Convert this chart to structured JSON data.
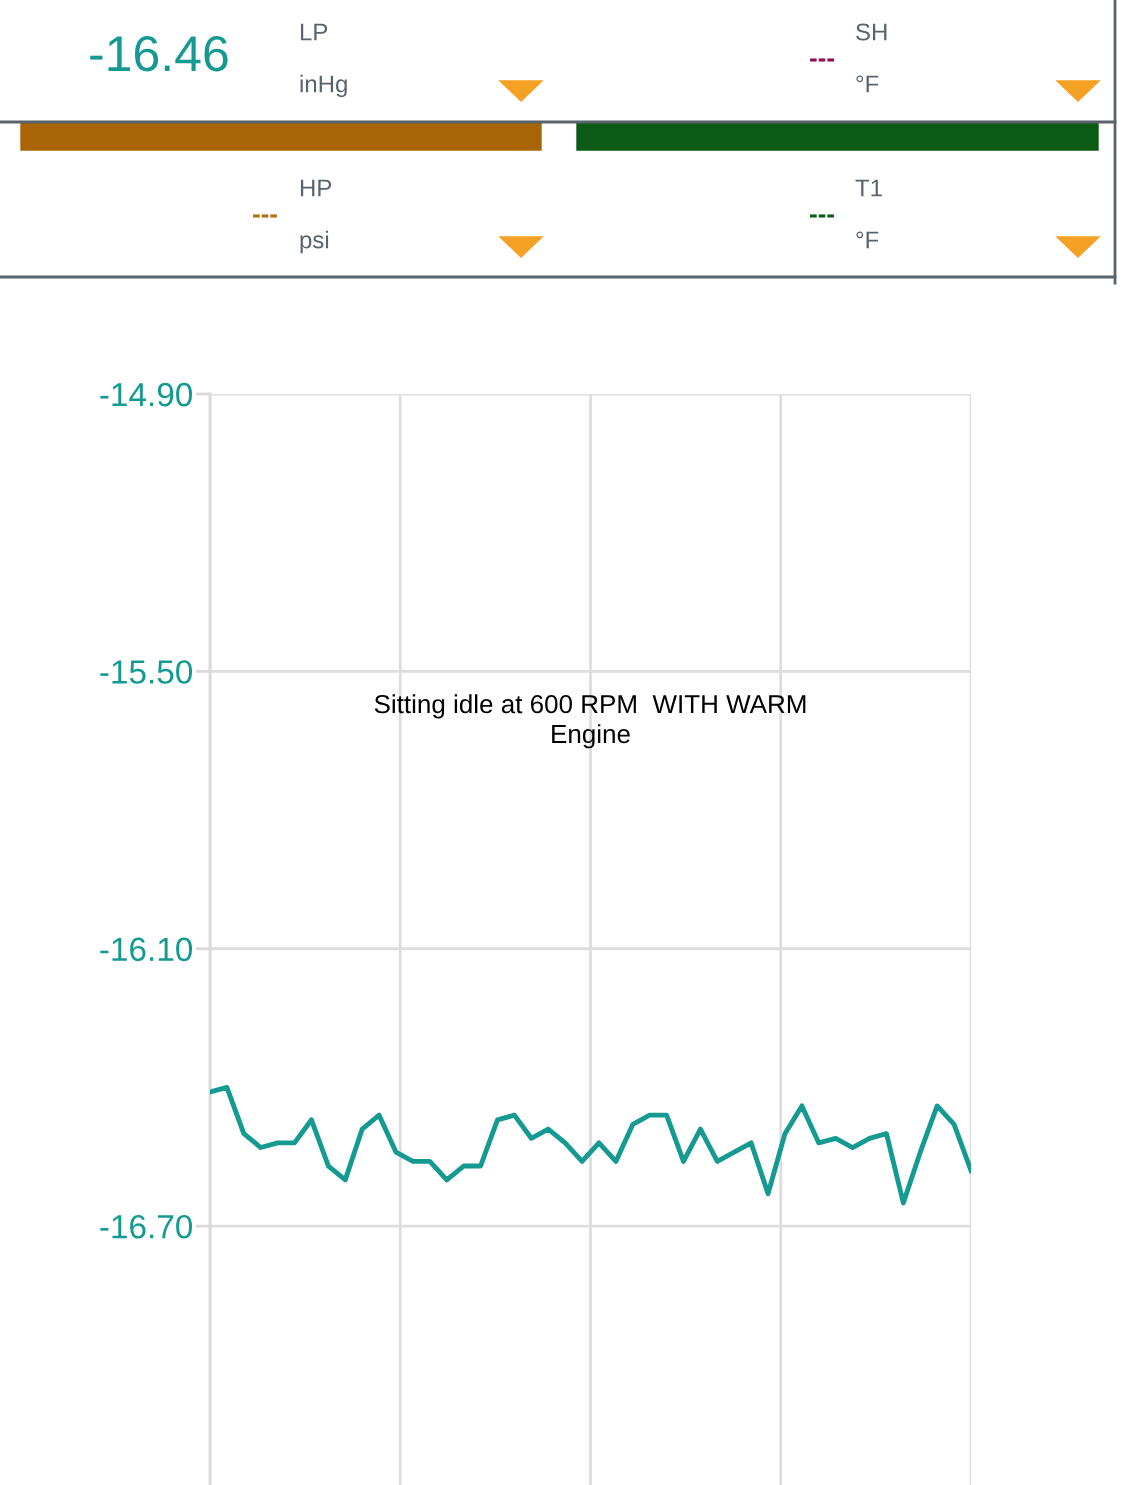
{
  "chart_data": {
    "type": "line",
    "annotations": [
      "-16.46",
      "LP",
      "inHg",
      "---",
      "SH",
      "°F",
      "---",
      "HP",
      "psi",
      "---",
      "T1",
      "°F",
      "Sitting idle at 600 RPM  WITH WARM\nEngine"
    ],
    "categories": [
      null,
      null,
      null,
      null,
      null,
      null,
      null,
      null,
      null,
      null,
      null,
      null,
      null,
      null,
      null,
      null,
      null,
      null,
      null,
      null,
      null,
      null,
      null,
      null,
      null,
      null,
      null,
      null,
      null,
      null,
      null,
      null,
      null,
      null,
      null,
      null,
      null,
      null,
      null,
      null,
      null,
      null,
      null,
      null,
      null,
      null
    ],
    "series": [
      {
        "color": "#149a91",
        "values": [
          -16.41,
          -16.4,
          -16.5,
          -16.53,
          -16.52,
          -16.52,
          -16.47,
          -16.57,
          -16.6,
          -16.49,
          -16.46,
          -16.54,
          -16.56,
          -16.56,
          -16.6,
          -16.57,
          -16.57,
          -16.47,
          -16.46,
          -16.51,
          -16.49,
          -16.52,
          -16.56,
          -16.52,
          -16.56,
          -16.48,
          -16.46,
          -16.46,
          -16.56,
          -16.49,
          -16.56,
          -16.54,
          -16.52,
          -16.63,
          -16.5,
          -16.44,
          -16.52,
          -16.51,
          -16.53,
          -16.51,
          -16.5,
          -16.65,
          -16.54,
          -16.44,
          -16.48,
          -16.58
        ]
      }
    ],
    "ylim": [
      -17.26,
      -14.9
    ],
    "yticks": [
      {
        "value": -14.9,
        "label": "-14.90"
      },
      {
        "value": -15.5,
        "label": "-15.50"
      },
      {
        "value": -16.1,
        "label": "-16.10"
      },
      {
        "value": -16.7,
        "label": "-16.70"
      }
    ],
    "grid": true,
    "tick_labels": "y",
    "marker": "none",
    "line_style": "solid"
  }
}
